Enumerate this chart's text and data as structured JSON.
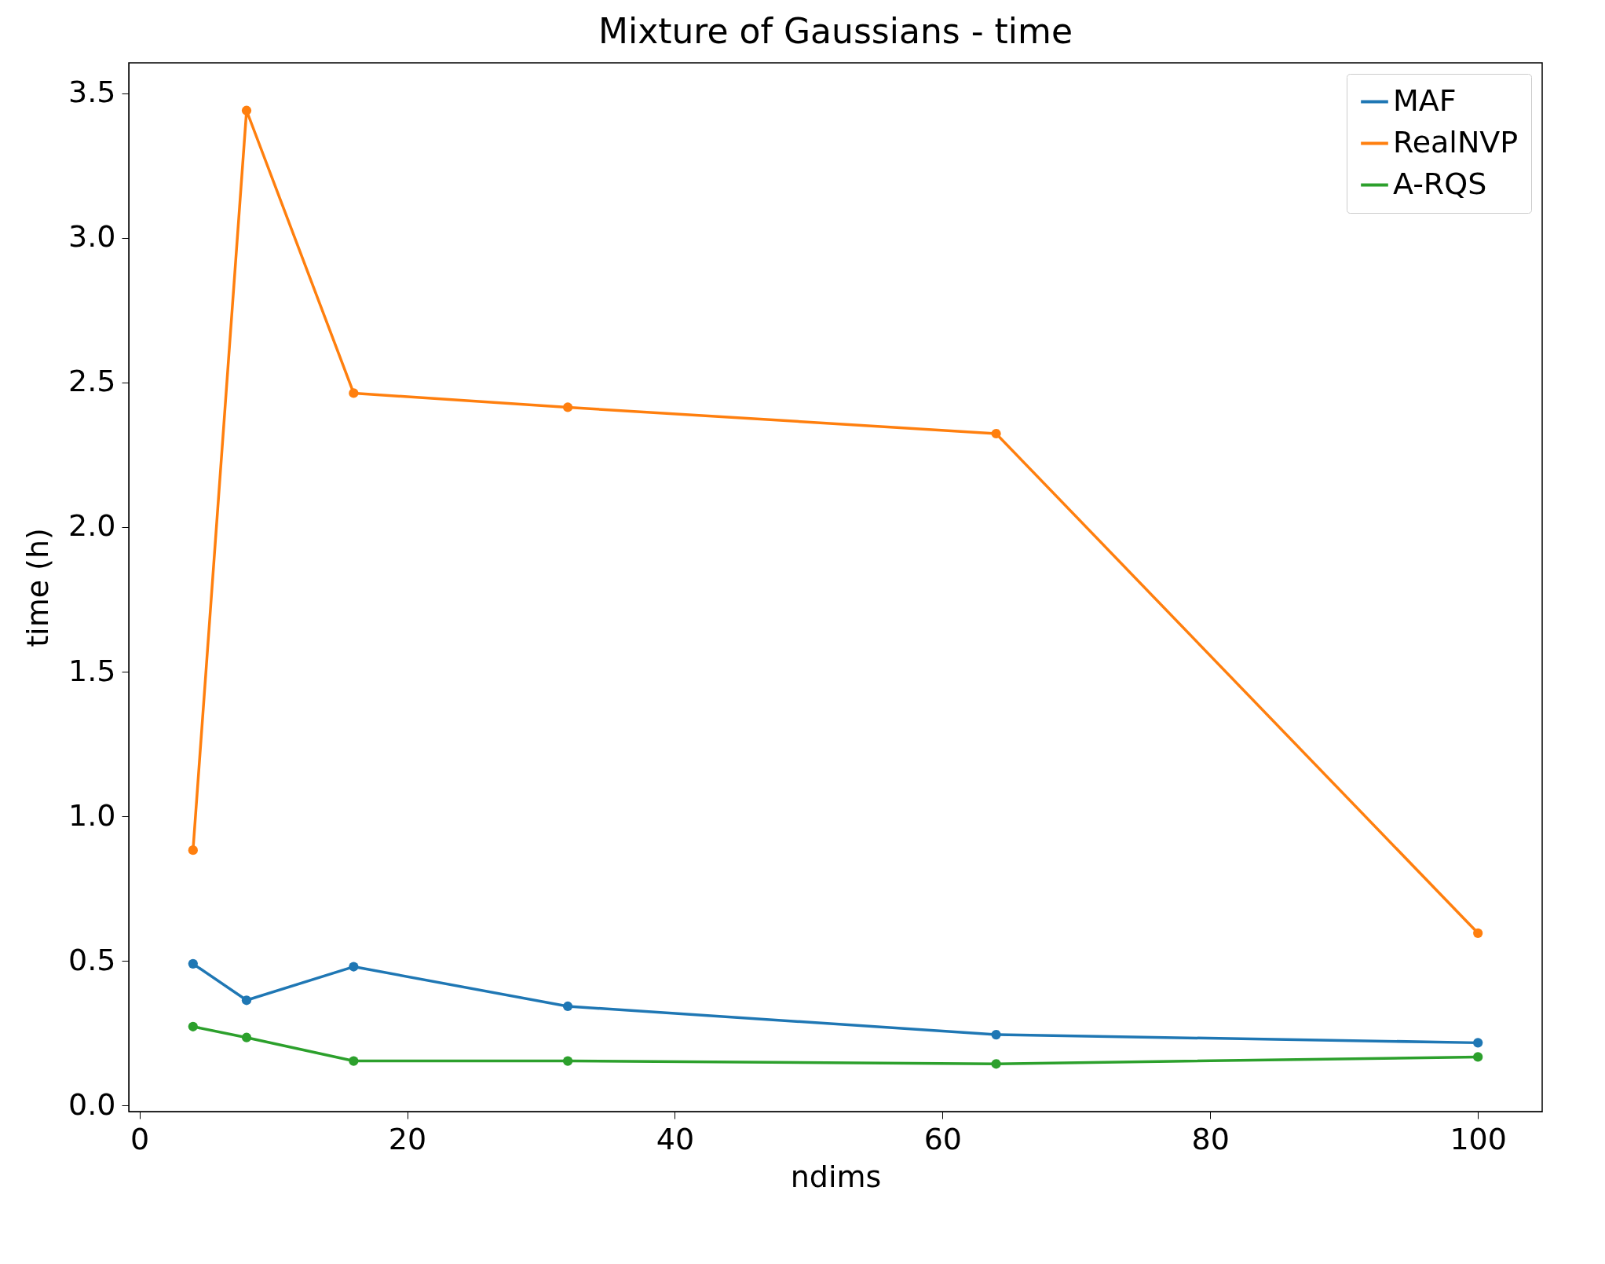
{
  "chart_data": {
    "type": "line",
    "title": "Mixture of Gaussians - time",
    "xlabel": "ndims",
    "ylabel": "time (h)",
    "x": [
      4,
      8,
      16,
      32,
      64,
      100
    ],
    "series": [
      {
        "name": "MAF",
        "color": "#1f77b4",
        "values": [
          0.49,
          0.364,
          0.48,
          0.343,
          0.245,
          0.217
        ]
      },
      {
        "name": "RealNVP",
        "color": "#ff7f0e",
        "values": [
          0.883,
          3.44,
          2.463,
          2.414,
          2.323,
          0.596
        ]
      },
      {
        "name": "A-RQS",
        "color": "#2ca02c",
        "values": [
          0.273,
          0.235,
          0.154,
          0.154,
          0.144,
          0.168
        ]
      }
    ],
    "xlim": [
      -0.8,
      104.8
    ],
    "xticks": [
      0,
      20,
      40,
      60,
      80,
      100
    ],
    "ylim": [
      -0.021,
      3.605
    ],
    "yticks": [
      {
        "value": 0,
        "label": "0.0"
      },
      0.5,
      {
        "value": 1,
        "label": "1.0"
      },
      1.5,
      {
        "value": 2,
        "label": "2.0"
      },
      2.5,
      {
        "value": 3,
        "label": "3.0"
      },
      3.5
    ],
    "marker": "circle",
    "line_style": "solid",
    "legend": "top right",
    "grid": false
  }
}
